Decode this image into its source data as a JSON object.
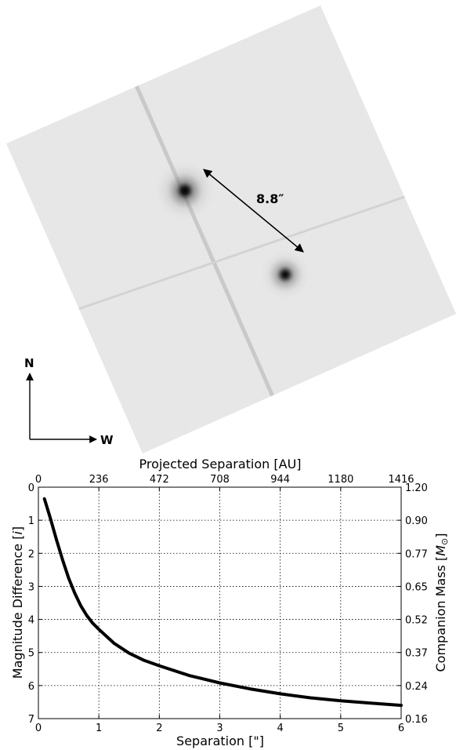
{
  "image_panel": {
    "separation_label": "8.8″",
    "compass": {
      "north": "N",
      "west": "W"
    }
  },
  "chart_data": {
    "type": "line",
    "x": [
      0.1,
      0.2,
      0.3,
      0.4,
      0.5,
      0.6,
      0.7,
      0.8,
      0.9,
      1.0,
      1.25,
      1.5,
      1.75,
      2.0,
      2.5,
      3.0,
      3.5,
      4.0,
      4.5,
      5.0,
      5.5,
      6.0
    ],
    "series": [
      {
        "values": [
          0.35,
          0.95,
          1.6,
          2.2,
          2.75,
          3.2,
          3.58,
          3.88,
          4.12,
          4.3,
          4.72,
          5.02,
          5.24,
          5.4,
          5.7,
          5.92,
          6.1,
          6.25,
          6.37,
          6.46,
          6.53,
          6.6
        ]
      }
    ],
    "xlabel": "Separation [\"]",
    "xlim": [
      0,
      6
    ],
    "x_ticks": [
      "0",
      "1",
      "2",
      "3",
      "4",
      "5",
      "6"
    ],
    "ylabel_left": "Magnitude Difference [",
    "ylabel_left_sym": "i",
    "ylabel_left_end": "]",
    "ylim": [
      0,
      7
    ],
    "y_inverted": true,
    "y_ticks": [
      "0",
      "1",
      "2",
      "3",
      "4",
      "5",
      "6",
      "7"
    ],
    "top_axis": {
      "label": "Projected Separation [AU]",
      "ticks": [
        "0",
        "236",
        "472",
        "708",
        "944",
        "1180",
        "1416"
      ]
    },
    "right_axis": {
      "label_pre": "Companion Mass [",
      "label_sym": "M",
      "label_sub": "⊙",
      "label_post": "]",
      "ticks": [
        "1.20",
        "0.90",
        "0.77",
        "0.65",
        "0.52",
        "0.37",
        "0.24",
        "0.16"
      ]
    },
    "grid": true
  }
}
